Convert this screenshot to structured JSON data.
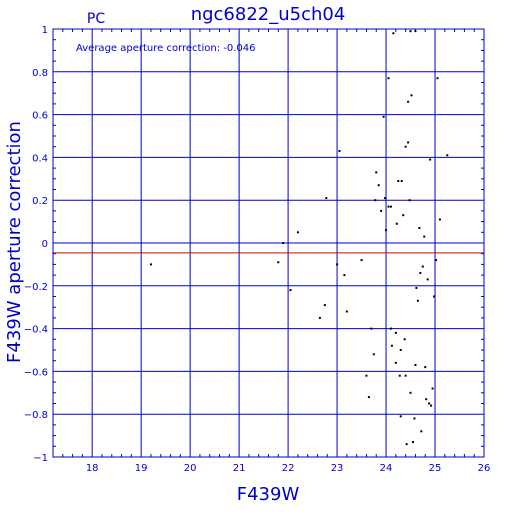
{
  "chart_data": {
    "type": "scatter",
    "title": "ngc6822_u5ch04",
    "corner_label": "PC",
    "annotation": "Average aperture correction: -0.046",
    "xlabel": "F439W",
    "ylabel": "F439W aperture correction",
    "xlim": [
      17.2,
      26
    ],
    "ylim": [
      -1,
      1
    ],
    "xticks": [
      18,
      19,
      20,
      21,
      22,
      23,
      24,
      25,
      26
    ],
    "yticks": [
      -1,
      -0.8,
      -0.6,
      -0.4,
      -0.2,
      0,
      0.2,
      0.4,
      0.6,
      0.8,
      1
    ],
    "ytick_labels": [
      "−1",
      "−0.8",
      "−0.6",
      "−0.4",
      "−0.2",
      "0",
      "0.2",
      "0.4",
      "0.6",
      "0.8",
      "1"
    ],
    "grid": true,
    "reference_line": {
      "y": -0.046,
      "color": "#dd0000"
    },
    "colors": {
      "axis": "#0000cc",
      "grid": "#0000cc",
      "points": "#000000"
    },
    "points": [
      [
        19.2,
        -0.1
      ],
      [
        21.8,
        -0.09
      ],
      [
        21.9,
        0.0
      ],
      [
        22.05,
        -0.22
      ],
      [
        22.2,
        0.05
      ],
      [
        22.65,
        -0.35
      ],
      [
        22.75,
        -0.29
      ],
      [
        22.78,
        0.21
      ],
      [
        23.0,
        -0.1
      ],
      [
        23.05,
        0.43
      ],
      [
        23.15,
        -0.15
      ],
      [
        23.2,
        -0.32
      ],
      [
        23.5,
        -0.08
      ],
      [
        23.6,
        -0.62
      ],
      [
        23.65,
        -0.72
      ],
      [
        23.7,
        -0.4
      ],
      [
        23.75,
        -0.52
      ],
      [
        23.78,
        0.2
      ],
      [
        23.8,
        0.33
      ],
      [
        23.85,
        0.27
      ],
      [
        23.9,
        0.15
      ],
      [
        23.95,
        0.59
      ],
      [
        23.98,
        0.21
      ],
      [
        24.0,
        0.06
      ],
      [
        24.05,
        0.77
      ],
      [
        24.05,
        0.17
      ],
      [
        24.1,
        -0.4
      ],
      [
        24.1,
        0.17
      ],
      [
        24.12,
        -0.48
      ],
      [
        24.15,
        0.98
      ],
      [
        24.2,
        -0.56
      ],
      [
        24.2,
        -0.42
      ],
      [
        24.22,
        0.09
      ],
      [
        24.25,
        0.29
      ],
      [
        24.28,
        -0.62
      ],
      [
        24.3,
        -0.81
      ],
      [
        24.3,
        -0.5
      ],
      [
        24.32,
        0.29
      ],
      [
        24.35,
        0.13
      ],
      [
        24.38,
        -0.45
      ],
      [
        24.4,
        0.45
      ],
      [
        24.4,
        -0.62
      ],
      [
        24.42,
        -0.94
      ],
      [
        24.45,
        0.47
      ],
      [
        24.45,
        0.66
      ],
      [
        24.48,
        0.2
      ],
      [
        24.5,
        -0.7
      ],
      [
        24.5,
        0.99
      ],
      [
        24.52,
        0.69
      ],
      [
        24.55,
        -0.93
      ],
      [
        24.58,
        -0.82
      ],
      [
        24.6,
        -0.57
      ],
      [
        24.6,
        0.99
      ],
      [
        24.62,
        -0.21
      ],
      [
        24.65,
        -0.27
      ],
      [
        24.68,
        0.07
      ],
      [
        24.7,
        -0.14
      ],
      [
        24.72,
        -0.88
      ],
      [
        24.75,
        -0.11
      ],
      [
        24.78,
        0.03
      ],
      [
        24.8,
        -0.58
      ],
      [
        24.82,
        -0.73
      ],
      [
        24.85,
        -0.17
      ],
      [
        24.88,
        -0.75
      ],
      [
        24.9,
        0.39
      ],
      [
        24.92,
        -0.76
      ],
      [
        24.95,
        -0.68
      ],
      [
        24.98,
        -0.25
      ],
      [
        25.02,
        -0.08
      ],
      [
        25.05,
        0.77
      ],
      [
        25.1,
        0.11
      ],
      [
        25.25,
        0.41
      ]
    ]
  }
}
